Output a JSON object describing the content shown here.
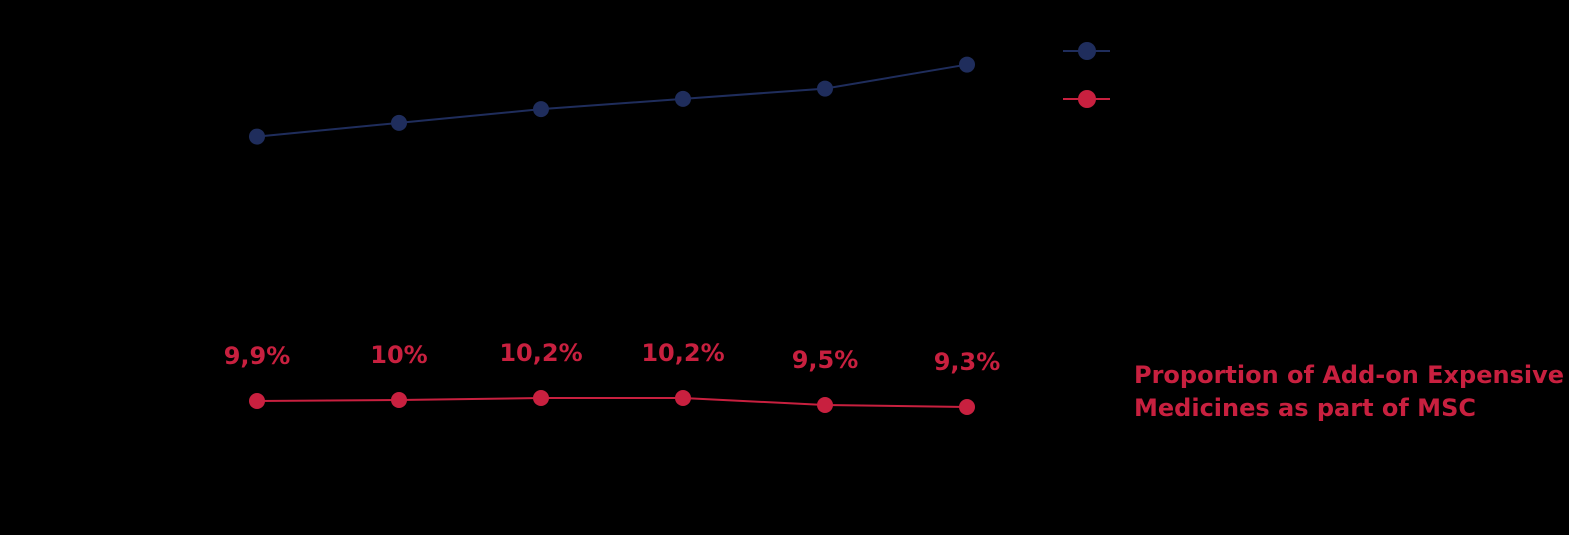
{
  "chart_data": {
    "type": "line",
    "categories": [
      null,
      null,
      null,
      null,
      null,
      null
    ],
    "series": [
      {
        "color": "#1f2d5c",
        "values": [
          106,
          110,
          114,
          117,
          120,
          127
        ]
      },
      {
        "color": "#c8203f",
        "axis": "y2",
        "values": [
          9.9,
          10,
          10.2,
          10.2,
          9.5,
          9.3
        ],
        "value_labels": [
          "9,9%",
          "10%",
          "10,2%",
          "10,2%",
          "9,5%",
          "9,3%"
        ]
      }
    ],
    "ylim": [
      0,
      140
    ],
    "y2lim": [
      0,
      48
    ],
    "annotation": [
      "Proportion of Add-on Expensive",
      "Medicines as part of MSC"
    ],
    "annotation_color": "#c8203f",
    "background": "#000000"
  }
}
